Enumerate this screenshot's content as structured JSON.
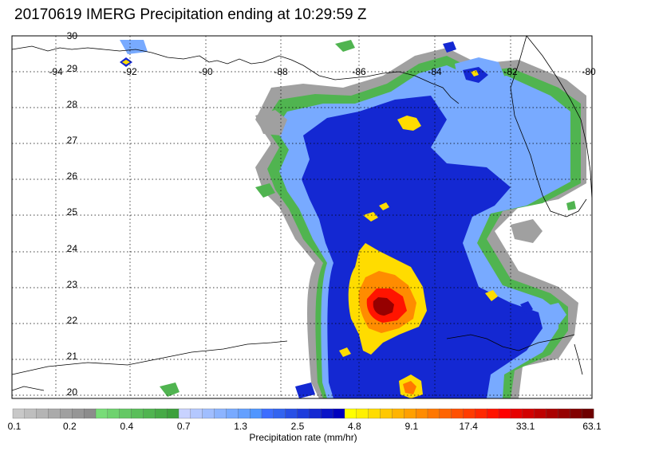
{
  "title": "20170619 IMERG Precipitation ending at 10:29:59 Z",
  "lon_labels": [
    "-94",
    "-92",
    "-90",
    "-88",
    "-86",
    "-84",
    "-82",
    "-80"
  ],
  "lat_labels": [
    "30",
    "29",
    "28",
    "27",
    "26",
    "25",
    "24",
    "23",
    "22",
    "21",
    "20"
  ],
  "colorbar": {
    "title": "Precipitation rate (mm/hr)",
    "tick_labels": [
      "0.1",
      "0.2",
      "0.4",
      "0.7",
      "1.3",
      "2.5",
      "4.8",
      "9.1",
      "17.4",
      "33.1",
      "63.1"
    ],
    "colors": [
      "#c8c8c8",
      "#bebebe",
      "#b4b4b4",
      "#aaaaaa",
      "#a0a0a0",
      "#969696",
      "#8c8c8c",
      "#78dc78",
      "#6ed26e",
      "#64c864",
      "#5abe5a",
      "#50b450",
      "#46aa46",
      "#3ca03c",
      "#c8d2ff",
      "#b4c8ff",
      "#a0beff",
      "#8cb4ff",
      "#78aaff",
      "#64a0ff",
      "#5096ff",
      "#3c6eff",
      "#3264f0",
      "#2850e6",
      "#1e3cdc",
      "#1428d2",
      "#0a14c8",
      "#0000be",
      "#ffff00",
      "#fff000",
      "#ffdc00",
      "#ffc800",
      "#ffb400",
      "#ffa000",
      "#ff8c00",
      "#ff7800",
      "#ff6400",
      "#ff5000",
      "#ff3c00",
      "#ff2800",
      "#ff1400",
      "#ff0000",
      "#e60000",
      "#d20000",
      "#be0000",
      "#aa0000",
      "#960000",
      "#820000",
      "#6e0000"
    ]
  }
}
